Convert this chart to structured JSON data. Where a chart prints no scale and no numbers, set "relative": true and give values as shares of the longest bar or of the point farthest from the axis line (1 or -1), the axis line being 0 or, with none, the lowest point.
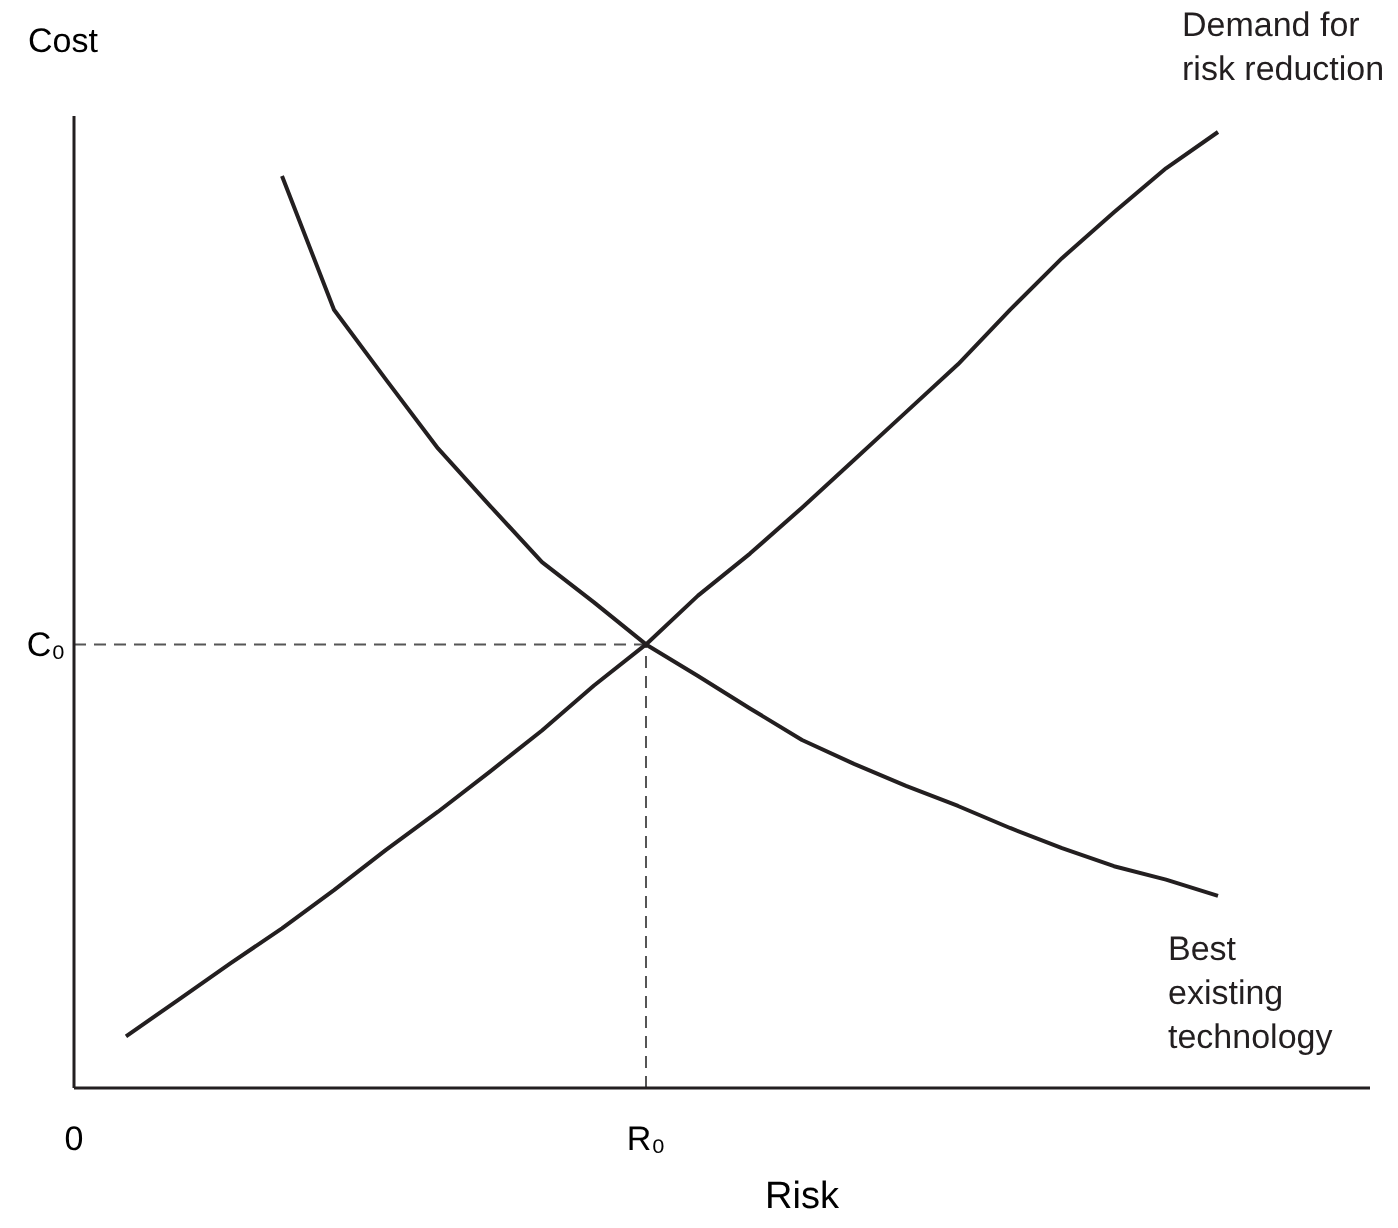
{
  "chart_data": {
    "type": "line",
    "relative": true,
    "xlabel": "Risk",
    "ylabel": "Cost",
    "categories": [
      "0",
      null,
      null,
      null,
      null,
      null,
      null,
      null,
      null,
      null,
      null,
      "R₀",
      null,
      null,
      null,
      null,
      null,
      null,
      null,
      null,
      null,
      null,
      null
    ],
    "series": [
      {
        "name": "Demand for\nrisk reduction",
        "color": "#231f20",
        "values": [
          null,
          0.054,
          0.092,
          0.13,
          0.167,
          0.207,
          0.249,
          0.289,
          0.331,
          0.374,
          0.421,
          0.464,
          0.515,
          0.559,
          0.607,
          0.657,
          0.707,
          0.757,
          0.814,
          0.868,
          0.916,
          0.962,
          1.0
        ]
      },
      {
        "name": "Best\nexisting\ntechnology",
        "color": "#231f20",
        "values": [
          null,
          null,
          null,
          null,
          0.954,
          0.814,
          0.741,
          0.669,
          0.609,
          0.55,
          0.508,
          0.464,
          0.431,
          0.397,
          0.364,
          0.339,
          0.316,
          0.295,
          0.272,
          0.251,
          0.232,
          0.218,
          0.201
        ]
      }
    ],
    "ref_lines": [
      {
        "axis": "y",
        "value": 0.464,
        "label": "C₀",
        "line_style": "dashed",
        "color": "#555555"
      },
      {
        "axis": "x",
        "value": "R₀",
        "line_style": "dashed",
        "color": "#555555"
      }
    ],
    "marker": "none",
    "line_style": "solid"
  }
}
